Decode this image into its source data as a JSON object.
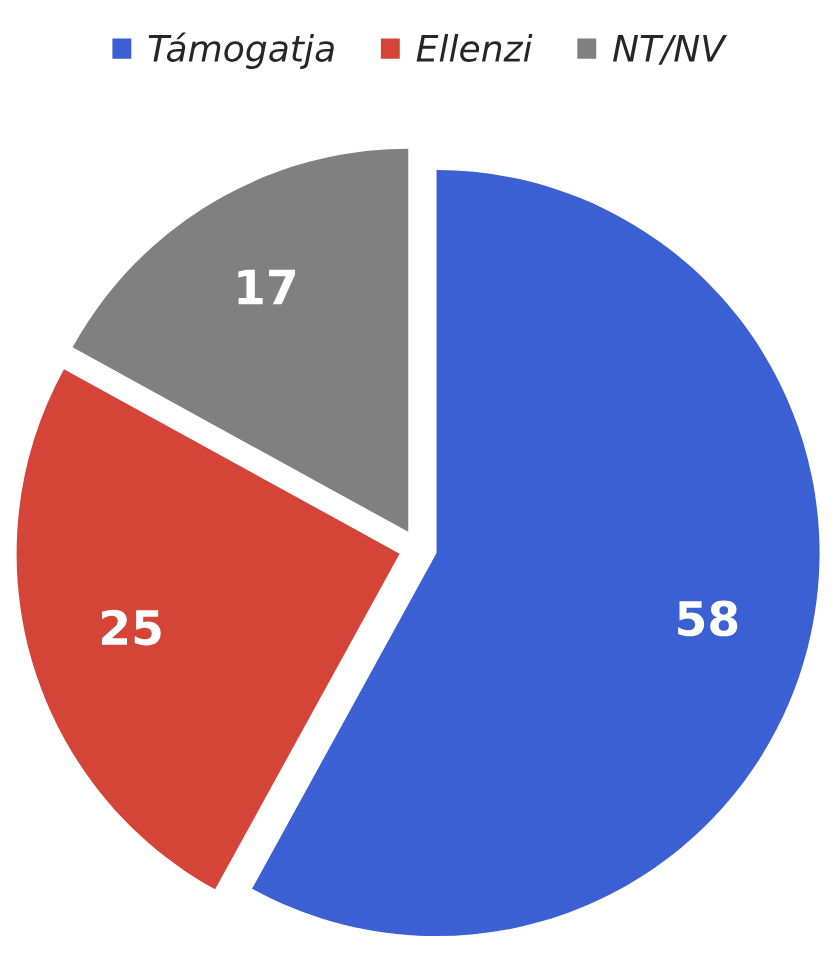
{
  "chart_data": {
    "type": "pie",
    "categories": [
      "Támogatja",
      "Ellenzi",
      "NT/NV"
    ],
    "values": [
      58,
      25,
      17
    ],
    "colors": [
      "#3a60d3",
      "#d54537",
      "#808080"
    ],
    "data_labels": true,
    "legend": "top"
  }
}
